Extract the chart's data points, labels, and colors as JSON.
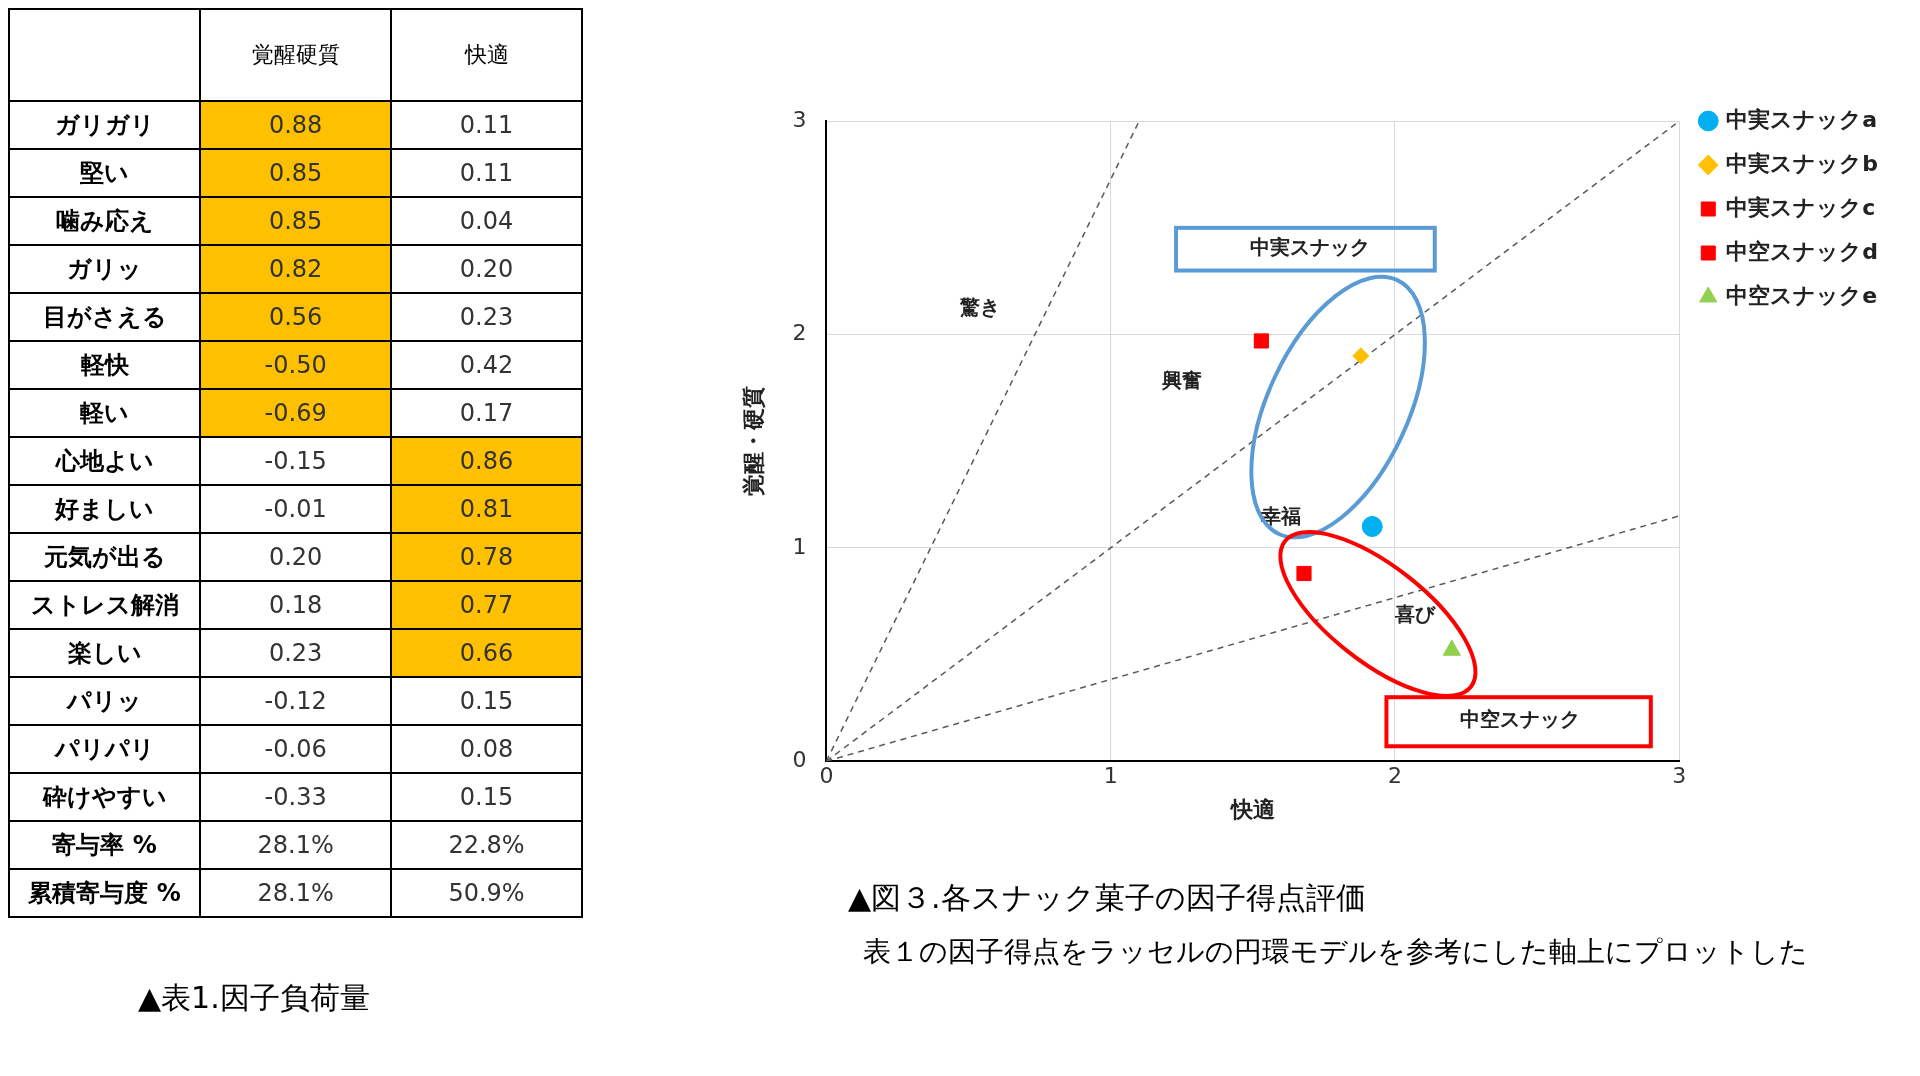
{
  "chart_data": [
    {
      "type": "other",
      "title": "▲表1.因子負荷量",
      "categories": [
        "ガリガリ",
        "堅い",
        "噛み応え",
        "ガリッ",
        "目がさえる",
        "軽快",
        "軽い",
        "心地よい",
        "好ましい",
        "元気が出る",
        "ストレス解消",
        "楽しい",
        "パリッ",
        "パリパリ",
        "砕けやすい",
        "寄与率 %",
        "累積寄与度 %"
      ],
      "series": [
        {
          "name": "覚醒硬質",
          "values": [
            0.88,
            0.85,
            0.85,
            0.82,
            0.56,
            -0.5,
            -0.69,
            -0.15,
            -0.01,
            0.2,
            0.18,
            0.23,
            -0.12,
            -0.06,
            -0.33,
            28.1,
            28.1
          ],
          "value_labels": [
            "0.88",
            "0.85",
            "0.85",
            "0.82",
            "0.56",
            "-0.50",
            "-0.69",
            "-0.15",
            "-0.01",
            "0.20",
            "0.18",
            "0.23",
            "-0.12",
            "-0.06",
            "-0.33",
            "28.1%",
            "28.1%"
          ],
          "colors": [
            "#ffc000",
            "#ffc000",
            "#ffc000",
            "#ffc000",
            "#ffc000",
            "#ffc000",
            "#ffc000",
            null,
            null,
            null,
            null,
            null,
            null,
            null,
            null,
            null,
            null
          ]
        },
        {
          "name": "快適",
          "values": [
            0.11,
            0.11,
            0.04,
            0.2,
            0.23,
            0.42,
            0.17,
            0.86,
            0.81,
            0.78,
            0.77,
            0.66,
            0.15,
            0.08,
            0.15,
            22.8,
            50.9
          ],
          "value_labels": [
            "0.11",
            "0.11",
            "0.04",
            "0.20",
            "0.23",
            "0.42",
            "0.17",
            "0.86",
            "0.81",
            "0.78",
            "0.77",
            "0.66",
            "0.15",
            "0.08",
            "0.15",
            "22.8%",
            "50.9%"
          ],
          "colors": [
            null,
            null,
            null,
            null,
            null,
            null,
            null,
            "#ffc000",
            "#ffc000",
            "#ffc000",
            "#ffc000",
            "#ffc000",
            null,
            null,
            null,
            null,
            null
          ]
        }
      ]
    },
    {
      "type": "scatter",
      "title": "▲図３.各スナック菓子の因子得点評価",
      "subtitle": "表１の因子得点をラッセルの円環モデルを参考にした軸上にプロットした",
      "xlabel": "快適",
      "ylabel": "覚醒・硬質",
      "xlim": [
        0,
        3
      ],
      "ylim": [
        0,
        3
      ],
      "xticks": [
        0,
        1,
        2,
        3
      ],
      "yticks": [
        0,
        1,
        2,
        3
      ],
      "grid": true,
      "legend": "right",
      "series": [
        {
          "name": "中実スナックa",
          "color": "#00b0f0",
          "marker": "circle",
          "x": [
            1.92
          ],
          "values": [
            1.1
          ]
        },
        {
          "name": "中実スナックb",
          "color": "#ffc000",
          "marker": "diamond",
          "x": [
            1.88
          ],
          "values": [
            1.9
          ]
        },
        {
          "name": "中実スナックc",
          "color": "#ff0000",
          "marker": "square",
          "x": [
            1.53
          ],
          "values": [
            1.97
          ]
        },
        {
          "name": "中空スナックd",
          "color": "#ff0000",
          "marker": "square",
          "x": [
            1.68
          ],
          "values": [
            0.88
          ]
        },
        {
          "name": "中空スナックe",
          "color": "#92d050",
          "marker": "triangle",
          "x": [
            2.2
          ],
          "values": [
            0.52
          ]
        },
        {
          "type": "line",
          "color": "#595959",
          "line_style": "dashed",
          "x": [
            0,
            1.1
          ],
          "values": [
            0,
            3
          ]
        },
        {
          "type": "line",
          "color": "#595959",
          "line_style": "dashed",
          "x": [
            0,
            3
          ],
          "values": [
            0,
            3
          ]
        },
        {
          "type": "line",
          "color": "#595959",
          "line_style": "dashed",
          "x": [
            0,
            3
          ],
          "values": [
            0,
            1.15
          ]
        }
      ],
      "annotations": [
        "驚き",
        "興奮",
        "幸福",
        "喜び",
        "中実スナック",
        "中空スナック"
      ]
    }
  ]
}
